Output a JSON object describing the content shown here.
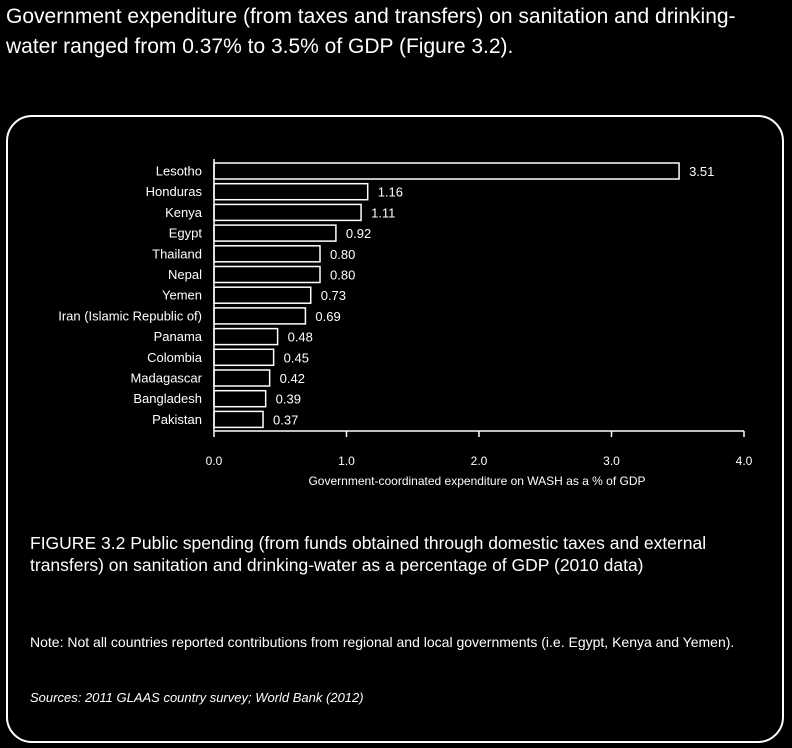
{
  "intro": "Government expenditure (from taxes and transfers) on sanitation and drinking-water ranged from 0.37% to 3.5% of GDP (Figure 3.2).",
  "caption": {
    "figure_label": "FIGURE 3.2",
    "text": "Public spending (from funds obtained through domestic taxes and external transfers) on sanitation and drinking-water as a percentage of GDP (2010 data)"
  },
  "note": "Note: Not all countries reported contributions from regional and local governments (i.e. Egypt, Kenya and Yemen).",
  "sources": "Sources: 2011 GLAAS country survey; World Bank (2012)",
  "chart_data": {
    "type": "bar",
    "orientation": "horizontal",
    "categories": [
      "Lesotho",
      "Honduras",
      "Kenya",
      "Egypt",
      "Thailand",
      "Nepal",
      "Yemen",
      "Iran (Islamic Republic of)",
      "Panama",
      "Colombia",
      "Madagascar",
      "Bangladesh",
      "Pakistan"
    ],
    "values": [
      3.51,
      1.16,
      1.11,
      0.92,
      0.8,
      0.8,
      0.73,
      0.69,
      0.48,
      0.45,
      0.42,
      0.39,
      0.37
    ],
    "value_labels": [
      "3.51",
      "1.16",
      "1.11",
      "0.92",
      "0.80",
      "0.80",
      "0.73",
      "0.69",
      "0.48",
      "0.45",
      "0.42",
      "0.39",
      "0.37"
    ],
    "xlabel": "Government-coordinated expenditure on WASH as a % of GDP",
    "xlim": [
      0,
      4
    ],
    "xticks": [
      "0.0",
      "1.0",
      "2.0",
      "3.0",
      "4.0"
    ],
    "grid": false,
    "colors": {
      "bar_fill": "#000000",
      "bar_stroke": "#ffffff",
      "text": "#ffffff"
    }
  }
}
